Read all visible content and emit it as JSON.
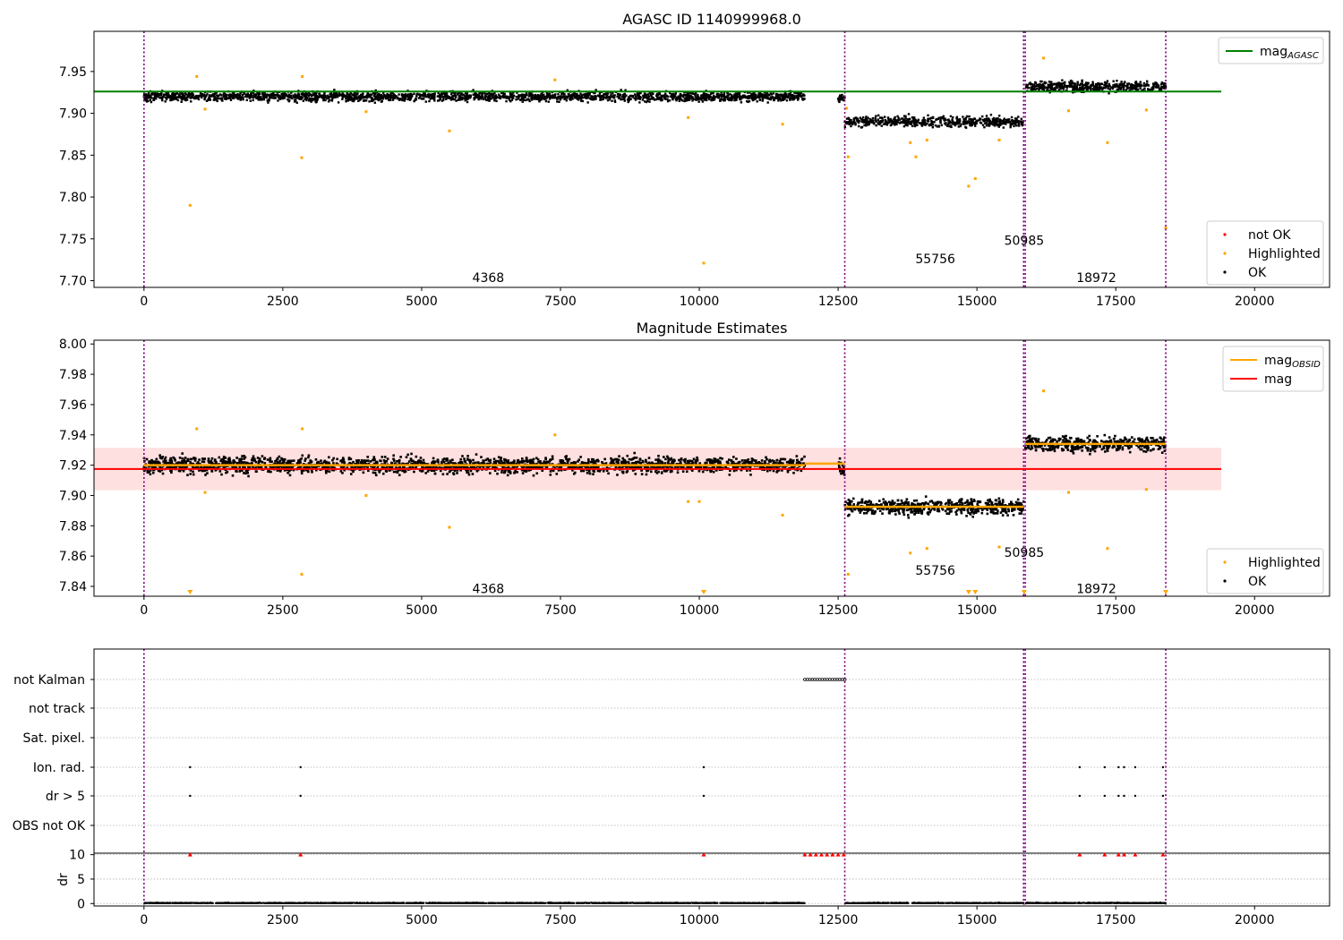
{
  "chart_data": [
    {
      "type": "scatter",
      "title": "AGASC ID 1140999968.0",
      "xlim": [
        -900,
        21350
      ],
      "ylim": [
        7.692,
        7.998
      ],
      "x_ticks": [
        0,
        2500,
        5000,
        7500,
        10000,
        12500,
        15000,
        17500,
        20000
      ],
      "y_ticks": [
        7.7,
        7.75,
        7.8,
        7.85,
        7.9,
        7.95
      ],
      "y_tick_labels": [
        "7.70",
        "7.75",
        "7.80",
        "7.85",
        "7.90",
        "7.95"
      ],
      "legends": [
        {
          "position": "top-right",
          "entries": [
            {
              "label": "mag",
              "subscript": "AGASC",
              "color": "#008000",
              "marker": "line"
            }
          ]
        },
        {
          "position": "lower-right",
          "entries": [
            {
              "label": "not OK",
              "color": "#ff0000",
              "marker": "dot"
            },
            {
              "label": "Highlighted",
              "color": "#ffa500",
              "marker": "dot"
            },
            {
              "label": "OK",
              "color": "#000000",
              "marker": "dot"
            }
          ]
        }
      ],
      "reference_lines": [
        {
          "y": 7.926,
          "x_range": [
            -900,
            19400
          ],
          "color": "#008000"
        }
      ],
      "observation_boundaries": [
        0,
        12620,
        15840,
        15870,
        18400
      ],
      "observation_labels": [
        {
          "text": "4368",
          "x": 6200,
          "y": 7.704
        },
        {
          "text": "55756",
          "x": 14250,
          "y": 7.726
        },
        {
          "text": "50985",
          "x": 15850,
          "y": 7.748
        },
        {
          "text": "18972",
          "x": 17150,
          "y": 7.704
        }
      ],
      "ok_bands": [
        {
          "x_range": [
            0,
            11900
          ],
          "center": 7.92,
          "spread": 0.01
        },
        {
          "x_range": [
            12500,
            12620
          ],
          "center": 7.918,
          "spread": 0.01
        },
        {
          "x_range": [
            12620,
            15840
          ],
          "center": 7.89,
          "spread": 0.011
        },
        {
          "x_range": [
            15870,
            18400
          ],
          "center": 7.932,
          "spread": 0.011
        }
      ],
      "highlighted_points": [
        {
          "x": 830,
          "y": 7.79
        },
        {
          "x": 950,
          "y": 7.944
        },
        {
          "x": 2840,
          "y": 7.847
        },
        {
          "x": 2850,
          "y": 7.944
        },
        {
          "x": 5500,
          "y": 7.879
        },
        {
          "x": 10080,
          "y": 7.721
        },
        {
          "x": 11500,
          "y": 7.887
        },
        {
          "x": 12650,
          "y": 7.906
        },
        {
          "x": 12680,
          "y": 7.848
        },
        {
          "x": 13900,
          "y": 7.848
        },
        {
          "x": 13800,
          "y": 7.865
        },
        {
          "x": 14100,
          "y": 7.868
        },
        {
          "x": 14850,
          "y": 7.813
        },
        {
          "x": 14970,
          "y": 7.822
        },
        {
          "x": 15400,
          "y": 7.868
        },
        {
          "x": 16200,
          "y": 7.966
        },
        {
          "x": 16650,
          "y": 7.903
        },
        {
          "x": 17350,
          "y": 7.865
        },
        {
          "x": 18050,
          "y": 7.904
        },
        {
          "x": 18400,
          "y": 7.763
        },
        {
          "x": 1100,
          "y": 7.905
        },
        {
          "x": 4000,
          "y": 7.902
        },
        {
          "x": 7400,
          "y": 7.94
        },
        {
          "x": 9800,
          "y": 7.895
        }
      ]
    },
    {
      "type": "scatter",
      "title": "Magnitude Estimates",
      "xlim": [
        -900,
        21350
      ],
      "ylim": [
        7.8335,
        8.0025
      ],
      "x_ticks": [
        0,
        2500,
        5000,
        7500,
        10000,
        12500,
        15000,
        17500,
        20000
      ],
      "y_ticks": [
        7.84,
        7.86,
        7.88,
        7.9,
        7.92,
        7.94,
        7.96,
        7.98,
        8.0
      ],
      "y_tick_labels": [
        "7.84",
        "7.86",
        "7.88",
        "7.90",
        "7.92",
        "7.94",
        "7.96",
        "7.98",
        "8.00"
      ],
      "legends": [
        {
          "position": "top-right",
          "entries": [
            {
              "label": "mag",
              "subscript": "OBSID",
              "color": "#ffa500",
              "marker": "line"
            },
            {
              "label": "mag",
              "subscript": "",
              "color": "#ff0000",
              "marker": "line"
            }
          ]
        },
        {
          "position": "lower-right",
          "entries": [
            {
              "label": "Highlighted",
              "color": "#ffa500",
              "marker": "dot"
            },
            {
              "label": "OK",
              "color": "#000000",
              "marker": "dot"
            }
          ]
        }
      ],
      "mean_line": {
        "y": 7.9175,
        "x_range": [
          -900,
          19400
        ],
        "color": "#ff0000",
        "band": [
          7.9035,
          7.9315
        ]
      },
      "obsid_segments": [
        {
          "x_range": [
            0,
            11900
          ],
          "y": 7.92
        },
        {
          "x_range": [
            11900,
            12620
          ],
          "y": 7.921
        },
        {
          "x_range": [
            12620,
            15840
          ],
          "y": 7.8925
        },
        {
          "x_range": [
            15870,
            18400
          ],
          "y": 7.934
        }
      ],
      "observation_boundaries": [
        0,
        12620,
        15840,
        15870,
        18400
      ],
      "observation_labels": [
        {
          "text": "4368",
          "x": 6200,
          "y": 7.8385
        },
        {
          "text": "55756",
          "x": 14250,
          "y": 7.8505
        },
        {
          "text": "50985",
          "x": 15850,
          "y": 7.8625
        },
        {
          "text": "18972",
          "x": 17150,
          "y": 7.8385
        }
      ],
      "ok_bands": [
        {
          "x_range": [
            0,
            11900
          ],
          "center": 7.92,
          "spread": 0.0095
        },
        {
          "x_range": [
            12500,
            12620
          ],
          "center": 7.918,
          "spread": 0.01
        },
        {
          "x_range": [
            12620,
            15840
          ],
          "center": 7.8925,
          "spread": 0.009
        },
        {
          "x_range": [
            15870,
            18400
          ],
          "center": 7.934,
          "spread": 0.009
        }
      ],
      "highlighted_points": [
        {
          "x": 950,
          "y": 7.944
        },
        {
          "x": 2840,
          "y": 7.848
        },
        {
          "x": 2850,
          "y": 7.944
        },
        {
          "x": 5500,
          "y": 7.879
        },
        {
          "x": 11500,
          "y": 7.887
        },
        {
          "x": 12680,
          "y": 7.848
        },
        {
          "x": 13800,
          "y": 7.862
        },
        {
          "x": 14100,
          "y": 7.865
        },
        {
          "x": 15400,
          "y": 7.866
        },
        {
          "x": 16200,
          "y": 7.969
        },
        {
          "x": 16650,
          "y": 7.902
        },
        {
          "x": 17350,
          "y": 7.865
        },
        {
          "x": 18050,
          "y": 7.904
        },
        {
          "x": 1100,
          "y": 7.902
        },
        {
          "x": 4000,
          "y": 7.9
        },
        {
          "x": 7400,
          "y": 7.94
        },
        {
          "x": 9800,
          "y": 7.896
        },
        {
          "x": 10000,
          "y": 7.896
        }
      ],
      "off_scale_markers": [
        830,
        10080,
        14850,
        14970,
        15850,
        18400
      ]
    },
    {
      "type": "scatter",
      "title": "",
      "xlim": [
        -900,
        21350
      ],
      "flag_rows": [
        "not Kalman",
        "not track",
        "Sat. pixel.",
        "Ion. rad.",
        "dr > 5",
        "OBS not OK"
      ],
      "flag_points": {
        "not Kalman": [
          [
            11900,
            12620
          ]
        ],
        "not track": [],
        "Sat. pixel.": [],
        "Ion. rad.": [
          830,
          2820,
          10080,
          16850,
          17300,
          17550,
          17650,
          17850,
          18350
        ],
        "dr > 5": [
          830,
          2820,
          10080,
          16850,
          17300,
          17550,
          17650,
          17850,
          18350
        ],
        "OBS not OK": []
      },
      "dr_axis": {
        "label": "dr",
        "ylim": [
          -0.5,
          10.3
        ],
        "ticks": [
          0,
          5,
          10
        ],
        "tick_labels": [
          "0",
          "5",
          "10"
        ]
      },
      "dr_clipped_points": [
        830,
        2820,
        10080,
        11900,
        12000,
        12100,
        12200,
        12300,
        12400,
        12500,
        12600,
        16850,
        17300,
        17550,
        17650,
        17850,
        18350
      ],
      "x_ticks": [
        0,
        2500,
        5000,
        7500,
        10000,
        12500,
        15000,
        17500,
        20000
      ],
      "observation_boundaries": [
        0,
        12620,
        15840,
        15870,
        18400
      ]
    }
  ]
}
